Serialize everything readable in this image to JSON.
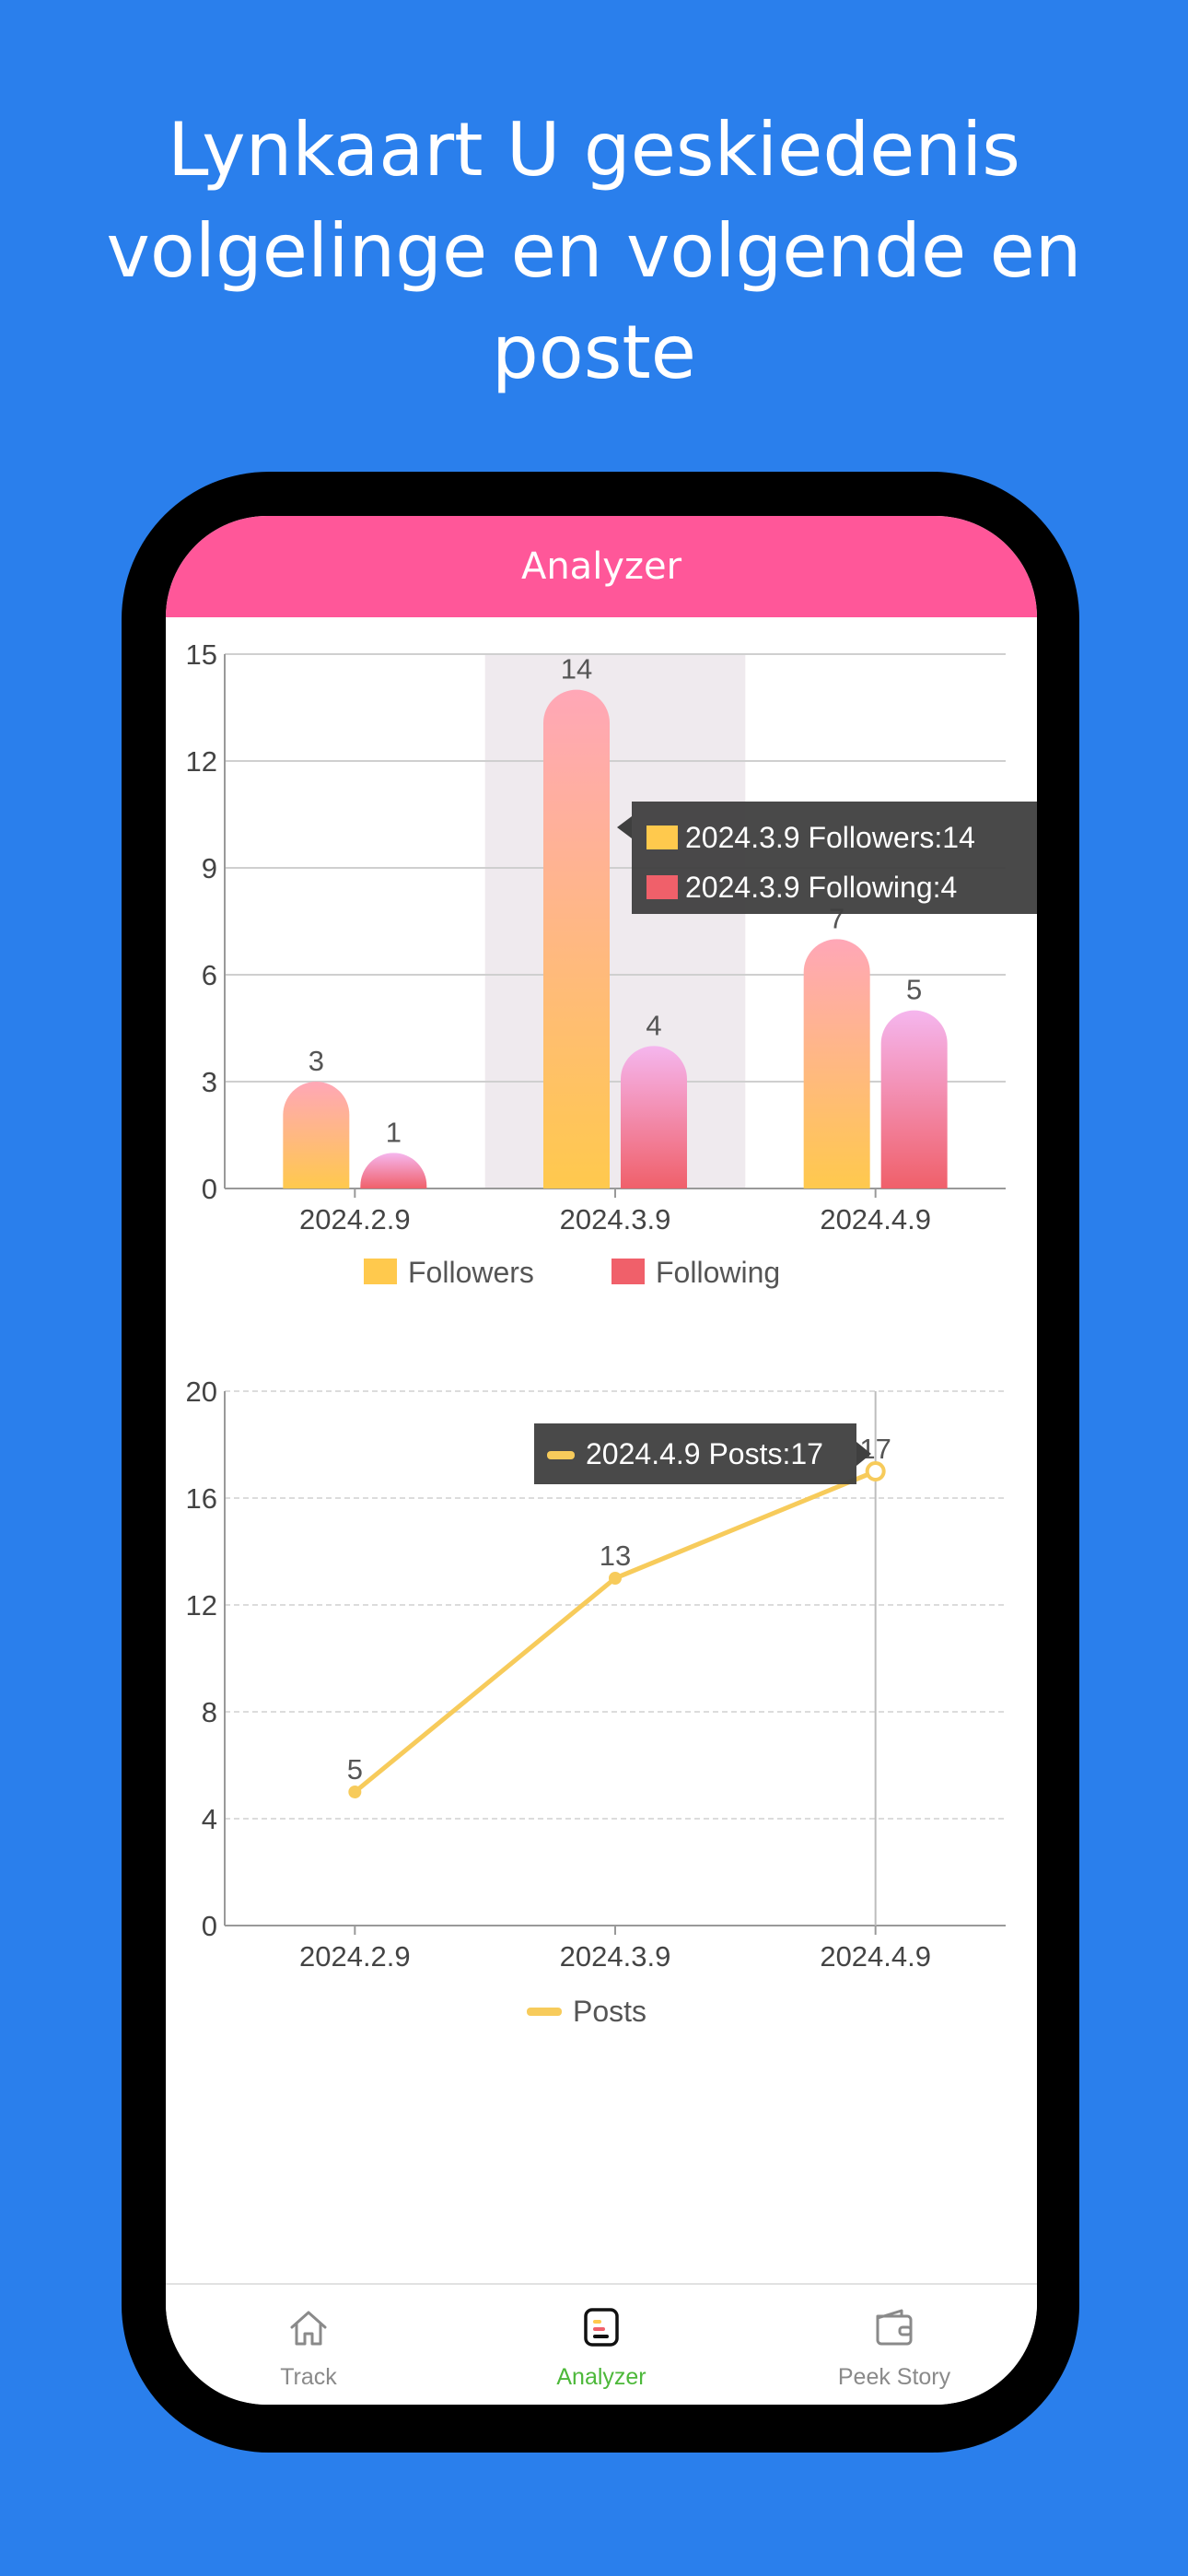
{
  "headline": {
    "line1": "Lynkaart U geskiedenis",
    "line2": "volgelinge en volgende en",
    "line3": "poste"
  },
  "app": {
    "title": "Analyzer",
    "accent": "#FF5799",
    "background": "#2A7FEC"
  },
  "chart_data": [
    {
      "type": "bar",
      "categories": [
        "2024.2.9",
        "2024.3.9",
        "2024.4.9"
      ],
      "series": [
        {
          "name": "Followers",
          "values": [
            3,
            14,
            7
          ],
          "color": "#FFC94D"
        },
        {
          "name": "Following",
          "values": [
            1,
            4,
            5
          ],
          "color": "#F0606A"
        }
      ],
      "ylim": [
        0,
        15
      ],
      "yticks": [
        "0",
        "3",
        "6",
        "9",
        "12",
        "15"
      ],
      "grid": true,
      "legend": "bottom",
      "highlight_category": "2024.3.9",
      "tooltip": {
        "line1": "2024.3.9 Followers:14",
        "line2": "2024.3.9 Following:4"
      }
    },
    {
      "type": "line",
      "categories": [
        "2024.2.9",
        "2024.3.9",
        "2024.4.9"
      ],
      "series": [
        {
          "name": "Posts",
          "values": [
            5,
            13,
            17
          ],
          "color": "#F7CB5B"
        }
      ],
      "ylim": [
        0,
        20
      ],
      "yticks": [
        "0",
        "4",
        "8",
        "12",
        "16",
        "20"
      ],
      "grid": true,
      "legend": "bottom",
      "tooltip": {
        "line1": "2024.4.9 Posts:17"
      }
    }
  ],
  "nav": {
    "items": [
      {
        "label": "Track",
        "icon": "home-icon"
      },
      {
        "label": "Analyzer",
        "icon": "analyzer-icon"
      },
      {
        "label": "Peek Story",
        "icon": "wallet-icon"
      }
    ],
    "active_color": "#4DB83A"
  }
}
